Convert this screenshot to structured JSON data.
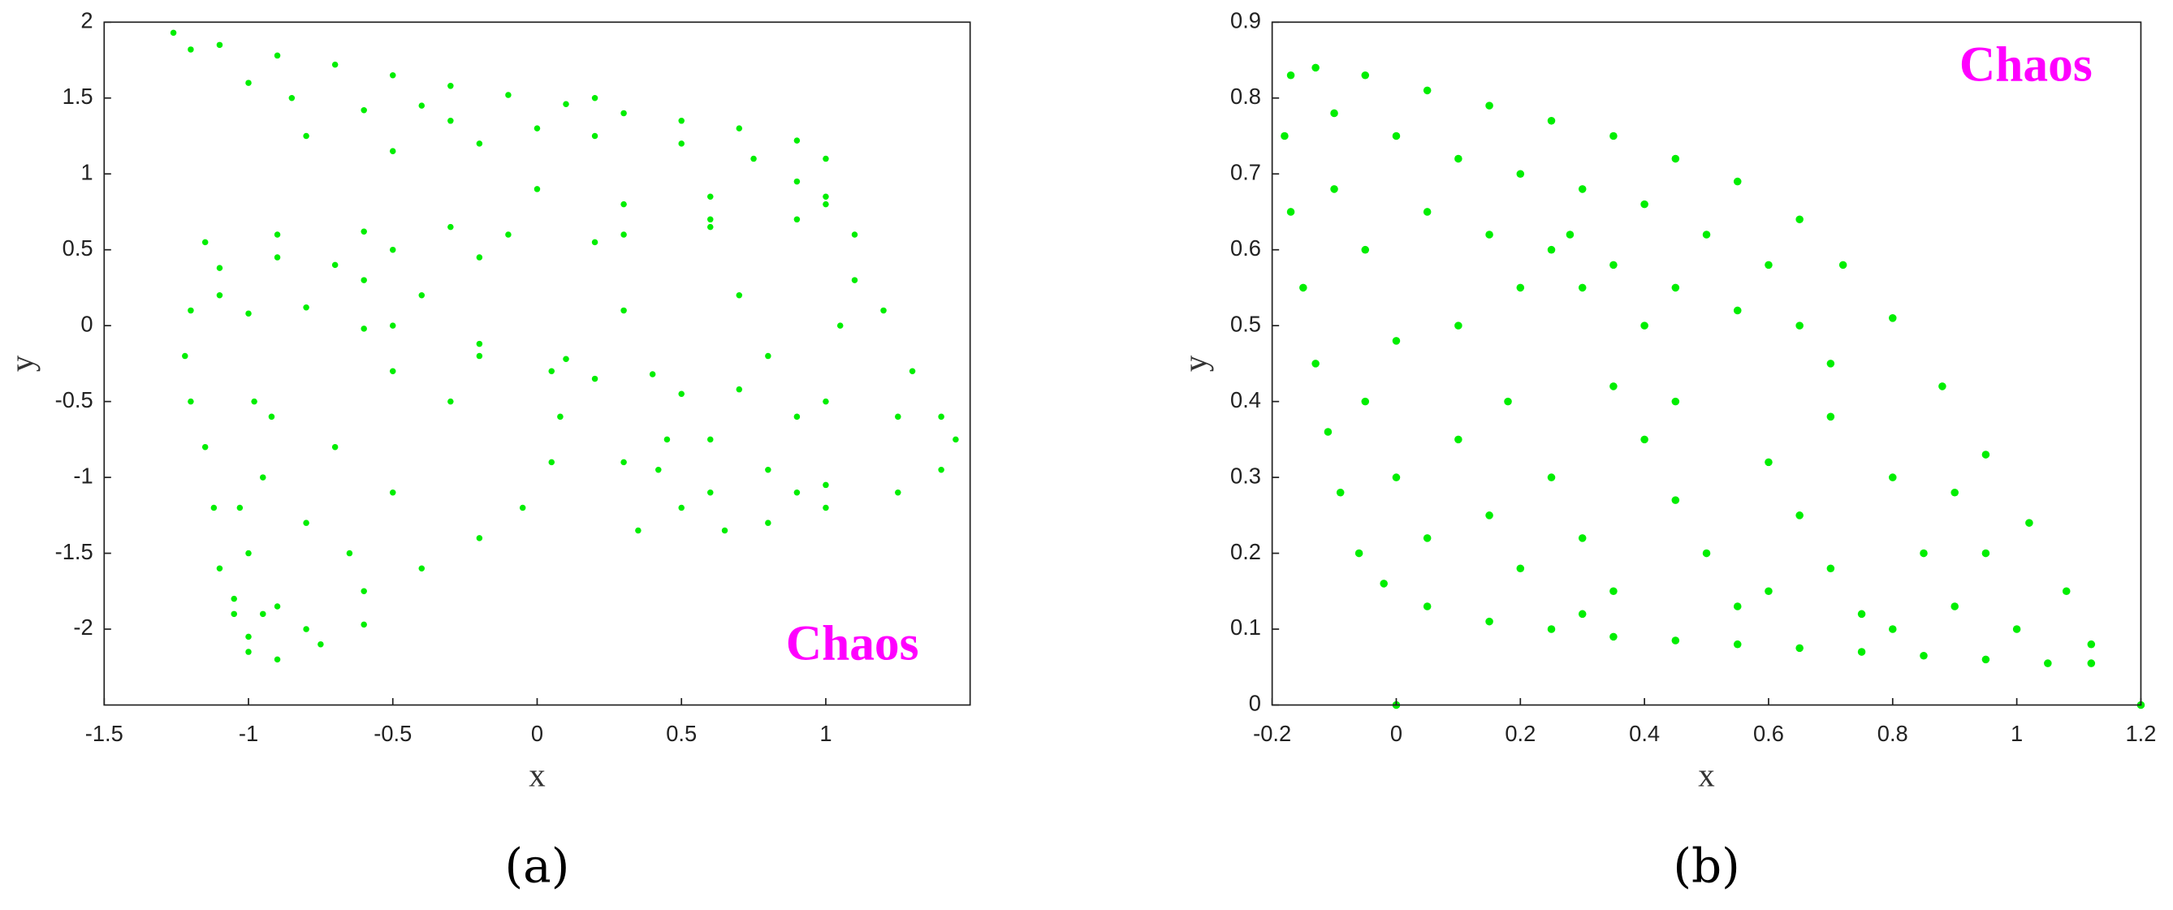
{
  "chart_data": [
    {
      "type": "scatter",
      "caption": "(a)",
      "annotation": "Chaos",
      "annotation_color": "#ff00ff",
      "color": "#00ee00",
      "x_label": "x",
      "y_label": "y",
      "xlim": [
        -1.5,
        1.5
      ],
      "ylim": [
        -2.5,
        2
      ],
      "xticks": [
        -1.5,
        -1,
        -0.5,
        0,
        0.5,
        1
      ],
      "yticks": [
        2,
        1.5,
        1,
        0.5,
        0,
        -0.5,
        -1,
        -1.5,
        -2
      ],
      "x": [
        -1.26,
        -1.1,
        -0.9,
        -0.7,
        -0.5,
        -0.3,
        -0.1,
        0.1,
        0.3,
        0.5,
        0.7,
        0.9,
        1.0,
        -1.2,
        -1.0,
        -0.85,
        -0.6,
        -0.3,
        0.0,
        0.2,
        -0.2,
        -0.5,
        -0.8,
        -0.4,
        0.2,
        0.5,
        0.75,
        0.9,
        1.0,
        0.6,
        0.3,
        0.0,
        -1.15,
        -0.9,
        -0.6,
        -0.3,
        -0.1,
        -0.5,
        -0.9,
        -1.1,
        -0.7,
        0.3,
        0.6,
        0.9,
        1.1,
        1.1,
        1.05,
        -1.1,
        -0.8,
        -0.5,
        -0.2,
        0.1,
        0.4,
        0.7,
        1.0,
        1.25,
        -1.0,
        -0.6,
        -0.2,
        0.2,
        0.5,
        0.9,
        -0.6,
        -0.2,
        0.2,
        0.6,
        1.0,
        1.4,
        1.45,
        1.4,
        1.25,
        1.0,
        0.8,
        0.65,
        0.5,
        0.42,
        0.45,
        0.6,
        0.8,
        1.0,
        0.6,
        0.9,
        1.3,
        1.2,
        -1.2,
        -1.22,
        -1.2,
        -1.15,
        -1.12,
        -1.1,
        -1.05,
        -1.0,
        -0.9,
        -0.75,
        -0.6,
        -0.8,
        -0.95,
        -1.0,
        -0.98,
        -0.92,
        -0.95,
        -1.0,
        -1.05,
        -1.03,
        -0.9,
        -0.6,
        -0.4,
        -0.2,
        -0.05,
        0.05,
        0.08,
        0.05,
        -0.7,
        -0.5,
        -0.3,
        -0.8,
        0.3,
        -0.4,
        0.3,
        0.7,
        0.8,
        -0.65,
        0.35,
        -0.5
      ],
      "values": [
        1.93,
        1.85,
        1.78,
        1.72,
        1.65,
        1.58,
        1.52,
        1.46,
        1.4,
        1.35,
        1.3,
        1.22,
        1.1,
        1.82,
        1.6,
        1.5,
        1.42,
        1.35,
        1.3,
        1.25,
        1.2,
        1.15,
        1.25,
        1.45,
        1.5,
        1.2,
        1.1,
        0.95,
        0.8,
        0.85,
        0.8,
        0.9,
        0.55,
        0.6,
        0.62,
        0.65,
        0.6,
        0.5,
        0.45,
        0.38,
        0.4,
        0.6,
        0.65,
        0.7,
        0.6,
        0.3,
        0.0,
        0.2,
        0.12,
        0.0,
        -0.12,
        -0.22,
        -0.32,
        -0.42,
        -0.5,
        -0.6,
        0.08,
        -0.02,
        -0.2,
        -0.35,
        -0.45,
        -0.6,
        0.3,
        0.45,
        0.55,
        0.7,
        0.85,
        -0.6,
        -0.75,
        -0.95,
        -1.1,
        -1.2,
        -1.3,
        -1.35,
        -1.2,
        -0.95,
        -0.75,
        -0.75,
        -0.95,
        -1.05,
        -1.1,
        -1.1,
        -0.3,
        0.1,
        0.1,
        -0.2,
        -0.5,
        -0.8,
        -1.2,
        -1.6,
        -1.9,
        -2.15,
        -2.2,
        -2.1,
        -1.97,
        -2.0,
        -1.9,
        -2.05,
        -0.5,
        -0.6,
        -1.0,
        -1.5,
        -1.8,
        -1.2,
        -1.85,
        -1.75,
        -1.6,
        -1.4,
        -1.2,
        -0.9,
        -0.6,
        -0.3,
        -0.8,
        -1.1,
        -0.5,
        -1.3,
        -0.9,
        0.2,
        0.1,
        0.2,
        -0.2,
        -1.5,
        -1.35,
        -0.3
      ]
    },
    {
      "type": "scatter",
      "caption": "(b)",
      "annotation": "Chaos",
      "annotation_color": "#ff00ff",
      "color": "#00ee00",
      "x_label": "x",
      "y_label": "y",
      "xlim": [
        -0.2,
        1.2
      ],
      "ylim": [
        0,
        0.9
      ],
      "xticks": [
        -0.2,
        0,
        0.2,
        0.4,
        0.6,
        0.8,
        1,
        1.2
      ],
      "yticks": [
        0.9,
        0.8,
        0.7,
        0.6,
        0.5,
        0.4,
        0.3,
        0.2,
        0.1,
        0
      ],
      "x": [
        -0.17,
        -0.13,
        -0.05,
        0.05,
        0.15,
        0.25,
        0.35,
        0.45,
        0.55,
        0.65,
        0.72,
        0.8,
        0.88,
        0.95,
        1.02,
        1.08,
        1.12,
        1.12,
        1.05,
        0.95,
        0.85,
        0.75,
        0.65,
        0.55,
        0.45,
        0.35,
        0.25,
        0.15,
        0.05,
        -0.02,
        -0.06,
        -0.09,
        -0.11,
        -0.13,
        -0.15,
        -0.17,
        -0.18,
        -0.1,
        0.0,
        0.1,
        0.2,
        0.3,
        0.4,
        0.5,
        0.6,
        0.05,
        0.15,
        0.25,
        0.35,
        0.45,
        0.3,
        0.2,
        0.4,
        0.28,
        -0.1,
        -0.05,
        0.55,
        0.65,
        0.7,
        -0.05,
        0.0,
        0.05,
        0.1,
        0.15,
        0.2,
        0.18,
        0.25,
        0.3,
        0.35,
        0.4,
        0.45,
        0.5,
        0.55,
        0.6,
        0.65,
        0.7,
        0.75,
        0.8,
        0.85,
        0.9,
        0.95,
        1.0,
        0.45,
        0.7,
        0.9,
        0.1,
        0.0,
        0.35,
        0.6,
        0.3,
        0.8,
        0,
        1.2
      ],
      "values": [
        0.83,
        0.84,
        0.83,
        0.81,
        0.79,
        0.77,
        0.75,
        0.72,
        0.69,
        0.64,
        0.58,
        0.51,
        0.42,
        0.33,
        0.24,
        0.15,
        0.08,
        0.055,
        0.055,
        0.06,
        0.065,
        0.07,
        0.075,
        0.08,
        0.085,
        0.09,
        0.1,
        0.11,
        0.13,
        0.16,
        0.2,
        0.28,
        0.36,
        0.45,
        0.55,
        0.65,
        0.75,
        0.78,
        0.75,
        0.72,
        0.7,
        0.68,
        0.66,
        0.62,
        0.58,
        0.65,
        0.62,
        0.6,
        0.58,
        0.55,
        0.55,
        0.55,
        0.5,
        0.62,
        0.68,
        0.6,
        0.52,
        0.5,
        0.45,
        0.4,
        0.3,
        0.22,
        0.35,
        0.25,
        0.18,
        0.4,
        0.3,
        0.22,
        0.15,
        0.35,
        0.27,
        0.2,
        0.13,
        0.32,
        0.25,
        0.18,
        0.12,
        0.3,
        0.2,
        0.13,
        0.2,
        0.1,
        0.4,
        0.38,
        0.28,
        0.5,
        0.48,
        0.42,
        0.15,
        0.12,
        0.1,
        0,
        0
      ]
    }
  ]
}
